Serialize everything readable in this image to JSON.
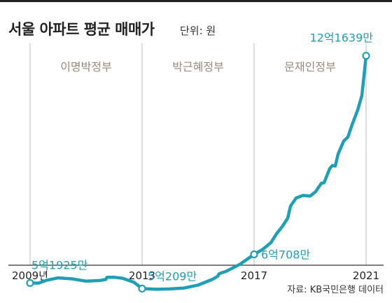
{
  "header": {
    "title": "서울 아파트 평균 매매가",
    "unit": "단위: 원"
  },
  "source": "자료: KB국민은행 데이터",
  "colors": {
    "line": "#1f9fb5",
    "era_text": "#9a8878",
    "axis": "#333333",
    "divider": "#bdbdbd"
  },
  "chart_data": {
    "type": "line",
    "title": "서울 아파트 평균 매매가",
    "ylabel": "",
    "xlabel": "",
    "y_unit": "만원",
    "x_tick_labels": [
      "2009년",
      "2013",
      "2017",
      "2021"
    ],
    "x_ticks": [
      2009,
      2013,
      2017,
      2021
    ],
    "xlim": [
      2009,
      2021
    ],
    "ylim": [
      40000,
      122000
    ],
    "grid": false,
    "eras": [
      {
        "label": "이명박정부",
        "from": 2009,
        "to": 2013
      },
      {
        "label": "박근혜정부",
        "from": 2013,
        "to": 2017
      },
      {
        "label": "문재인정부",
        "from": 2017,
        "to": 2021
      }
    ],
    "annotations": [
      {
        "label": "5억1925만",
        "x": 2009.0,
        "y": 51925
      },
      {
        "label": "5억209만",
        "x": 2013.0,
        "y": 50209
      },
      {
        "label": "6억708만",
        "x": 2017.0,
        "y": 60708
      },
      {
        "label": "12억1639만",
        "x": 2021.0,
        "y": 121639
      }
    ],
    "series": [
      {
        "values": [
          [
            2009.0,
            51925
          ],
          [
            2009.3,
            51900
          ],
          [
            2009.6,
            52800
          ],
          [
            2010.0,
            53500
          ],
          [
            2010.5,
            53200
          ],
          [
            2011.0,
            52500
          ],
          [
            2011.5,
            52700
          ],
          [
            2011.7,
            53000
          ],
          [
            2011.75,
            53700
          ],
          [
            2012.0,
            53700
          ],
          [
            2012.3,
            53400
          ],
          [
            2012.7,
            52200
          ],
          [
            2013.0,
            50209
          ],
          [
            2013.5,
            50000
          ],
          [
            2014.0,
            50100
          ],
          [
            2014.5,
            50400
          ],
          [
            2015.0,
            51300
          ],
          [
            2015.5,
            53000
          ],
          [
            2015.7,
            54000
          ],
          [
            2015.75,
            54800
          ],
          [
            2016.0,
            55500
          ],
          [
            2016.5,
            57700
          ],
          [
            2017.0,
            60708
          ],
          [
            2017.3,
            62200
          ],
          [
            2017.6,
            64300
          ],
          [
            2017.8,
            67000
          ],
          [
            2018.0,
            69200
          ],
          [
            2018.2,
            71800
          ],
          [
            2018.3,
            75500
          ],
          [
            2018.5,
            78000
          ],
          [
            2018.75,
            78800
          ],
          [
            2019.0,
            78600
          ],
          [
            2019.2,
            80000
          ],
          [
            2019.4,
            82500
          ],
          [
            2019.5,
            82700
          ],
          [
            2019.7,
            87000
          ],
          [
            2019.8,
            88000
          ],
          [
            2019.9,
            87800
          ],
          [
            2020.0,
            91500
          ],
          [
            2020.2,
            95500
          ],
          [
            2020.35,
            96700
          ],
          [
            2020.5,
            100500
          ],
          [
            2020.7,
            105000
          ],
          [
            2020.85,
            109500
          ],
          [
            2021.0,
            121639
          ]
        ]
      }
    ]
  }
}
